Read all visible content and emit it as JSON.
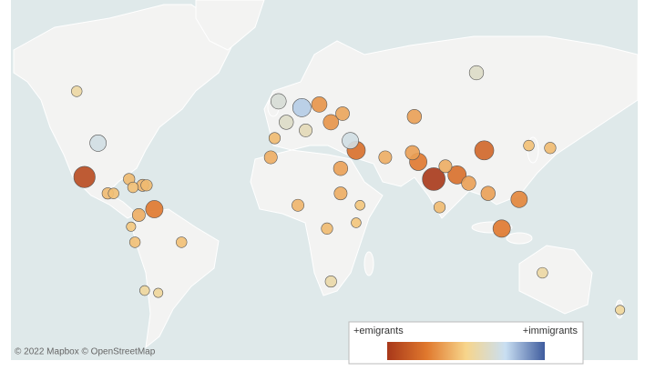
{
  "map": {
    "attribution": "© 2022 Mapbox © OpenStreetMap",
    "legend": {
      "low_label": "+emigrants",
      "high_label": "+immigrants",
      "colors": [
        "#a8381a",
        "#e0782d",
        "#f7d58b",
        "#c9dff2",
        "#3f5c9e"
      ]
    },
    "points": [
      {
        "lon": 78,
        "lat": 22,
        "value": -70
      },
      {
        "lon": -102,
        "lat": 23,
        "value": -60
      },
      {
        "lon": 104,
        "lat": 35,
        "value": -45
      },
      {
        "lon": 100,
        "lat": 61,
        "value": 20
      },
      {
        "lon": 90,
        "lat": 24,
        "value": -40
      },
      {
        "lon": 38,
        "lat": 35,
        "value": -40
      },
      {
        "lon": 113,
        "lat": -3,
        "value": -35
      },
      {
        "lon": 70,
        "lat": 30,
        "value": -35
      },
      {
        "lon": -66,
        "lat": 7,
        "value": -35
      },
      {
        "lon": -95,
        "lat": 38,
        "value": 30
      },
      {
        "lon": 122,
        "lat": 12,
        "value": -30
      },
      {
        "lon": 35,
        "lat": 39,
        "value": 30
      },
      {
        "lon": 10,
        "lat": 51,
        "value": 40
      },
      {
        "lon": 19,
        "lat": 52,
        "value": -25
      },
      {
        "lon": 25,
        "lat": 46,
        "value": -25
      },
      {
        "lon": -2,
        "lat": 53,
        "value": 25
      },
      {
        "lon": 2,
        "lat": 46,
        "value": 20
      },
      {
        "lon": 31,
        "lat": 49,
        "value": -18
      },
      {
        "lon": 68,
        "lat": 48,
        "value": -20
      },
      {
        "lon": 67,
        "lat": 34,
        "value": -20
      },
      {
        "lon": 30,
        "lat": 27,
        "value": -20
      },
      {
        "lon": 96,
        "lat": 20,
        "value": -20
      },
      {
        "lon": 106,
        "lat": 15,
        "value": -20
      },
      {
        "lon": 12,
        "lat": 43,
        "value": 15
      },
      {
        "lon": 53,
        "lat": 32,
        "value": -15
      },
      {
        "lon": -6,
        "lat": 32,
        "value": -15
      },
      {
        "lon": 30,
        "lat": 15,
        "value": -15
      },
      {
        "lon": -74,
        "lat": 4,
        "value": -15
      },
      {
        "lon": 84,
        "lat": 28,
        "value": -15
      },
      {
        "lon": 8,
        "lat": 9,
        "value": -12
      },
      {
        "lon": -72,
        "lat": 19,
        "value": -12
      },
      {
        "lon": -4,
        "lat": 40,
        "value": -10
      },
      {
        "lon": 23,
        "lat": -3,
        "value": -10
      },
      {
        "lon": 25,
        "lat": -29,
        "value": 10
      },
      {
        "lon": 138,
        "lat": 36,
        "value": -10
      },
      {
        "lon": -90,
        "lat": 15,
        "value": -10
      },
      {
        "lon": -79,
        "lat": 22,
        "value": -10
      },
      {
        "lon": -70,
        "lat": 19,
        "value": -10
      },
      {
        "lon": 81,
        "lat": 8,
        "value": -10
      },
      {
        "lon": -87,
        "lat": 15,
        "value": -8
      },
      {
        "lon": -77,
        "lat": 18,
        "value": -8
      },
      {
        "lon": -52,
        "lat": -10,
        "value": -8
      },
      {
        "lon": -76,
        "lat": -10,
        "value": -8
      },
      {
        "lon": 127,
        "lat": 37,
        "value": -8
      },
      {
        "lon": -106,
        "lat": 56,
        "value": 8
      },
      {
        "lon": 134,
        "lat": -25,
        "value": 8
      },
      {
        "lon": 40,
        "lat": 9,
        "value": -6
      },
      {
        "lon": 38,
        "lat": 0,
        "value": -6
      },
      {
        "lon": -71,
        "lat": -33,
        "value": 6
      },
      {
        "lon": -64,
        "lat": -34,
        "value": 5
      },
      {
        "lon": 174,
        "lat": -41,
        "value": 5
      },
      {
        "lon": -78,
        "lat": -2,
        "value": -5
      }
    ]
  }
}
